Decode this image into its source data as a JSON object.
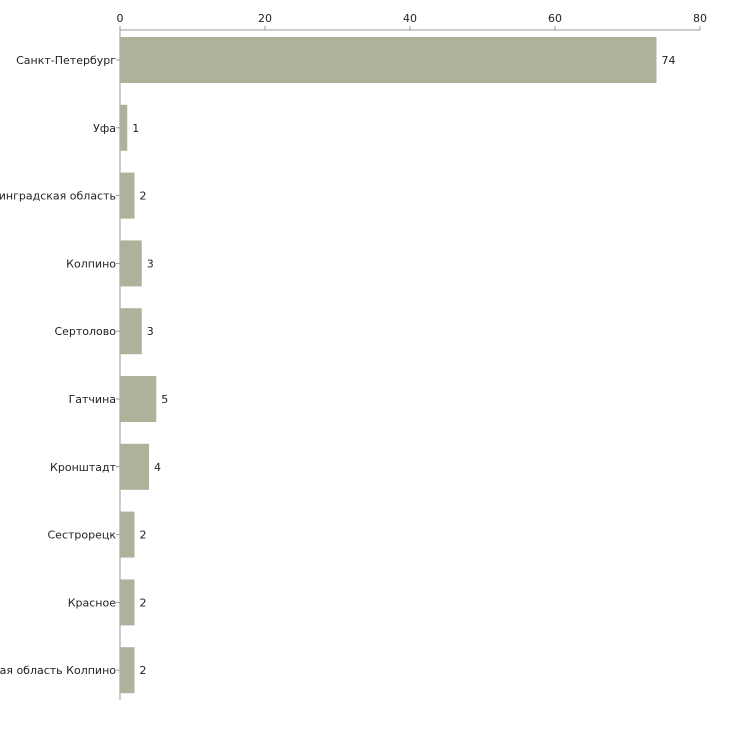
{
  "chart_data": {
    "type": "bar",
    "orientation": "horizontal",
    "categories": [
      "Санкт-Петербург",
      "Уфа",
      "Ленинградская область",
      "Колпино",
      "Сертолово",
      "Гатчина",
      "Кронштадт",
      "Сестрорецк",
      "Красное",
      "Ленинградская область Колпино"
    ],
    "values": [
      74,
      1,
      2,
      3,
      3,
      5,
      4,
      2,
      2,
      2
    ],
    "xlim": [
      0,
      80
    ],
    "xticks": [
      0,
      20,
      40,
      60,
      80
    ],
    "x_axis_position": "top",
    "title": "",
    "xlabel": "",
    "ylabel": "",
    "grid": false,
    "bar_color": "#adb39a",
    "data_labels": true
  }
}
